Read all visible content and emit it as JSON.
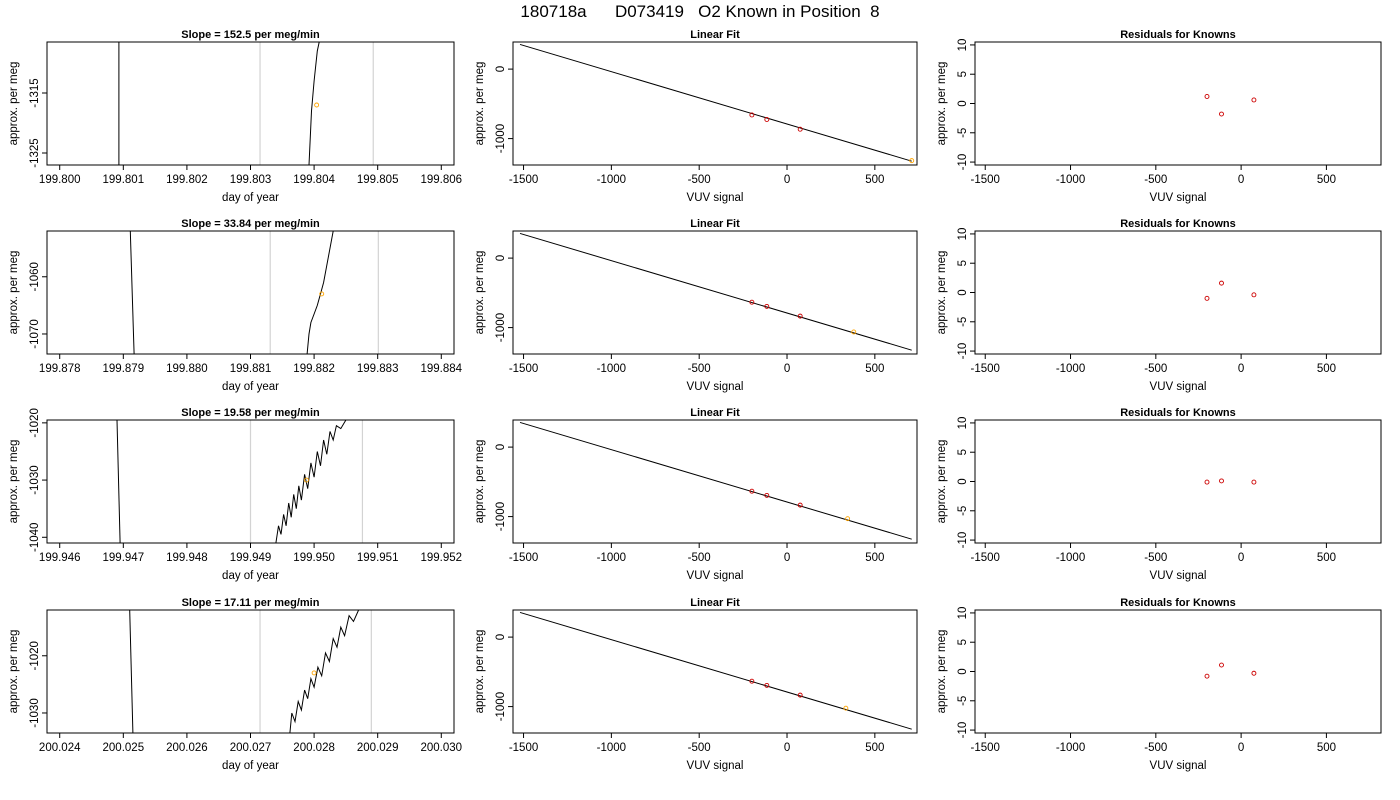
{
  "figure": {
    "title": "180718a      D073419   O2 Known in Position  8"
  },
  "colors": {
    "axis": "#000000",
    "trace": "#000000",
    "marker_line": "#d3d3d3",
    "known_point": "#cd0000",
    "sample_point": "#ffa500",
    "fit_line": "#000000"
  },
  "chart_data": [
    {
      "panel": "time-1",
      "type": "line",
      "title": "Slope =  152.5  per meg/min",
      "xlabel": "day of year",
      "ylabel": "approx. per meg",
      "xlim": [
        199.7998,
        199.8062
      ],
      "ylim": [
        -1327,
        -1306.5
      ],
      "xticks": [
        199.8,
        199.801,
        199.802,
        199.803,
        199.804,
        199.805,
        199.806
      ],
      "xtick_labels": [
        "199.800",
        "199.801",
        "199.802",
        "199.803",
        "199.804",
        "199.805",
        "199.806"
      ],
      "yticks": [
        -1325,
        -1315
      ],
      "ytick_labels": [
        "-1325",
        "-1315"
      ],
      "marker_lines": [
        199.80315,
        199.80493
      ],
      "trace_segments": [
        [
          [
            199.80093,
            -1306.5
          ],
          [
            199.80093,
            -1327
          ]
        ],
        [
          [
            199.80392,
            -1327
          ],
          [
            199.80396,
            -1318
          ],
          [
            199.804,
            -1313
          ],
          [
            199.80405,
            -1308
          ],
          [
            199.80408,
            -1306.5
          ]
        ]
      ],
      "sample_point": [
        199.80404,
        -1317
      ]
    },
    {
      "panel": "fit-1",
      "type": "scatter",
      "title": "Linear Fit",
      "xlabel": "VUV signal",
      "ylabel": "approx. per meg",
      "xlim": [
        -1560,
        740
      ],
      "ylim": [
        -1380,
        390
      ],
      "xticks": [
        -1500,
        -1000,
        -500,
        0,
        500
      ],
      "xtick_labels": [
        "-1500",
        "-1000",
        "-500",
        "0",
        "500"
      ],
      "yticks": [
        -1000,
        0
      ],
      "ytick_labels": [
        "-1000",
        "0"
      ],
      "fit_line": [
        [
          -1520,
          355
        ],
        [
          710,
          -1325
        ]
      ],
      "knowns": [
        [
          -200,
          -660
        ],
        [
          -115,
          -725
        ],
        [
          75,
          -865
        ]
      ],
      "sample": [
        [
          710,
          -1317
        ]
      ]
    },
    {
      "panel": "resid-1",
      "type": "scatter",
      "title": "Residuals for Knowns",
      "xlabel": "VUV signal",
      "ylabel": "approx. per meg",
      "xlim": [
        -1560,
        820
      ],
      "ylim": [
        -10.5,
        10.5
      ],
      "xticks": [
        -1500,
        -1000,
        -500,
        0,
        500
      ],
      "xtick_labels": [
        "-1500",
        "-1000",
        "-500",
        "0",
        "500"
      ],
      "yticks": [
        -10,
        -5,
        0,
        5,
        10
      ],
      "ytick_labels": [
        "-10",
        "-5",
        "0",
        "5",
        "10"
      ],
      "residuals": [
        [
          -200,
          1.2
        ],
        [
          -115,
          -1.8
        ],
        [
          75,
          0.6
        ]
      ]
    },
    {
      "panel": "time-2",
      "type": "line",
      "title": "Slope =  33.84  per meg/min",
      "xlabel": "day of year",
      "ylabel": "approx. per meg",
      "xlim": [
        199.8778,
        199.8842
      ],
      "ylim": [
        -1073.5,
        -1052
      ],
      "xticks": [
        199.878,
        199.879,
        199.88,
        199.881,
        199.882,
        199.883,
        199.884
      ],
      "xtick_labels": [
        "199.878",
        "199.879",
        "199.880",
        "199.881",
        "199.882",
        "199.883",
        "199.884"
      ],
      "yticks": [
        -1070,
        -1060
      ],
      "ytick_labels": [
        "-1070",
        "-1060"
      ],
      "marker_lines": [
        199.88131,
        199.88301
      ],
      "trace_segments": [
        [
          [
            199.87911,
            -1052
          ],
          [
            199.87917,
            -1073.5
          ]
        ],
        [
          [
            199.88189,
            -1073.5
          ],
          [
            199.88192,
            -1070
          ],
          [
            199.88195,
            -1068
          ],
          [
            199.882,
            -1066.5
          ],
          [
            199.88205,
            -1065
          ],
          [
            199.8821,
            -1063
          ],
          [
            199.88215,
            -1061
          ],
          [
            199.8822,
            -1058
          ],
          [
            199.88225,
            -1055
          ],
          [
            199.8823,
            -1052
          ]
        ]
      ],
      "sample_point": [
        199.88212,
        -1063
      ]
    },
    {
      "panel": "fit-2",
      "type": "scatter",
      "title": "Linear Fit",
      "xlabel": "VUV signal",
      "ylabel": "approx. per meg",
      "xlim": [
        -1560,
        740
      ],
      "ylim": [
        -1380,
        390
      ],
      "xticks": [
        -1500,
        -1000,
        -500,
        0,
        500
      ],
      "xtick_labels": [
        "-1500",
        "-1000",
        "-500",
        "0",
        "500"
      ],
      "yticks": [
        -1000,
        0
      ],
      "ytick_labels": [
        "-1000",
        "0"
      ],
      "fit_line": [
        [
          -1520,
          355
        ],
        [
          710,
          -1325
        ]
      ],
      "knowns": [
        [
          -200,
          -635
        ],
        [
          -115,
          -695
        ],
        [
          75,
          -835
        ]
      ],
      "sample": [
        [
          380,
          -1063
        ]
      ]
    },
    {
      "panel": "resid-2",
      "type": "scatter",
      "title": "Residuals for Knowns",
      "xlabel": "VUV signal",
      "ylabel": "approx. per meg",
      "xlim": [
        -1560,
        820
      ],
      "ylim": [
        -10.5,
        10.5
      ],
      "xticks": [
        -1500,
        -1000,
        -500,
        0,
        500
      ],
      "xtick_labels": [
        "-1500",
        "-1000",
        "-500",
        "0",
        "500"
      ],
      "yticks": [
        -10,
        -5,
        0,
        5,
        10
      ],
      "ytick_labels": [
        "-10",
        "-5",
        "0",
        "5",
        "10"
      ],
      "residuals": [
        [
          -200,
          -1.0
        ],
        [
          -115,
          1.6
        ],
        [
          75,
          -0.4
        ]
      ]
    },
    {
      "panel": "time-3",
      "type": "line",
      "title": "Slope =  19.58  per meg/min",
      "xlabel": "day of year",
      "ylabel": "approx. per meg",
      "xlim": [
        199.9458,
        199.9522
      ],
      "ylim": [
        -1041,
        -1019.5
      ],
      "xticks": [
        199.946,
        199.947,
        199.948,
        199.949,
        199.95,
        199.951,
        199.952
      ],
      "xtick_labels": [
        "199.946",
        "199.947",
        "199.948",
        "199.949",
        "199.950",
        "199.951",
        "199.952"
      ],
      "yticks": [
        -1040,
        -1030,
        -1020
      ],
      "ytick_labels": [
        "-1040",
        "-1030",
        "-1020"
      ],
      "marker_lines": [
        199.949,
        199.95076
      ],
      "trace_segments": [
        [
          [
            199.9469,
            -1019.5
          ],
          [
            199.94695,
            -1041
          ]
        ],
        [
          [
            199.9494,
            -1041
          ],
          [
            199.94944,
            -1038
          ],
          [
            199.94948,
            -1039.5
          ],
          [
            199.94952,
            -1036
          ],
          [
            199.94956,
            -1038
          ],
          [
            199.9496,
            -1034
          ],
          [
            199.94964,
            -1036.5
          ],
          [
            199.94968,
            -1032.5
          ],
          [
            199.94972,
            -1035
          ],
          [
            199.94976,
            -1031
          ],
          [
            199.9498,
            -1033.5
          ],
          [
            199.94985,
            -1029
          ],
          [
            199.9499,
            -1031.5
          ],
          [
            199.94995,
            -1027
          ],
          [
            199.95,
            -1029.5
          ],
          [
            199.95005,
            -1025
          ],
          [
            199.9501,
            -1027.5
          ],
          [
            199.95015,
            -1023
          ],
          [
            199.9502,
            -1025.5
          ],
          [
            199.95025,
            -1021.5
          ],
          [
            199.9503,
            -1023
          ],
          [
            199.95035,
            -1020.5
          ],
          [
            199.95042,
            -1021
          ],
          [
            199.9505,
            -1019.5
          ]
        ]
      ],
      "sample_point": [
        199.94988,
        -1030
      ]
    },
    {
      "panel": "fit-3",
      "type": "scatter",
      "title": "Linear Fit",
      "xlabel": "VUV signal",
      "ylabel": "approx. per meg",
      "xlim": [
        -1560,
        740
      ],
      "ylim": [
        -1380,
        390
      ],
      "xticks": [
        -1500,
        -1000,
        -500,
        0,
        500
      ],
      "xtick_labels": [
        "-1500",
        "-1000",
        "-500",
        "0",
        "500"
      ],
      "yticks": [
        -1000,
        0
      ],
      "ytick_labels": [
        "-1000",
        "0"
      ],
      "fit_line": [
        [
          -1520,
          355
        ],
        [
          710,
          -1325
        ]
      ],
      "knowns": [
        [
          -200,
          -635
        ],
        [
          -115,
          -695
        ],
        [
          75,
          -835
        ]
      ],
      "sample": [
        [
          345,
          -1030
        ]
      ]
    },
    {
      "panel": "resid-3",
      "type": "scatter",
      "title": "Residuals for Knowns",
      "xlabel": "VUV signal",
      "ylabel": "approx. per meg",
      "xlim": [
        -1560,
        820
      ],
      "ylim": [
        -10.5,
        10.5
      ],
      "xticks": [
        -1500,
        -1000,
        -500,
        0,
        500
      ],
      "xtick_labels": [
        "-1500",
        "-1000",
        "-500",
        "0",
        "500"
      ],
      "yticks": [
        -10,
        -5,
        0,
        5,
        10
      ],
      "ytick_labels": [
        "-10",
        "-5",
        "0",
        "5",
        "10"
      ],
      "residuals": [
        [
          -200,
          -0.1
        ],
        [
          -115,
          0.1
        ],
        [
          75,
          -0.1
        ]
      ]
    },
    {
      "panel": "time-4",
      "type": "line",
      "title": "Slope =  17.11  per meg/min",
      "xlabel": "day of year",
      "ylabel": "approx. per meg",
      "xlim": [
        200.0238,
        200.0302
      ],
      "ylim": [
        -1033.5,
        -1012
      ],
      "xticks": [
        200.024,
        200.025,
        200.026,
        200.027,
        200.028,
        200.029,
        200.03
      ],
      "xtick_labels": [
        "200.024",
        "200.025",
        "200.026",
        "200.027",
        "200.028",
        "200.029",
        "200.030"
      ],
      "yticks": [
        -1030,
        -1020
      ],
      "ytick_labels": [
        "-1030",
        "-1020"
      ],
      "marker_lines": [
        200.02715,
        200.0289
      ],
      "trace_segments": [
        [
          [
            200.0251,
            -1012
          ],
          [
            200.02515,
            -1033.5
          ]
        ],
        [
          [
            200.02762,
            -1033.5
          ],
          [
            200.02765,
            -1030
          ],
          [
            200.0277,
            -1031.5
          ],
          [
            200.02775,
            -1028
          ],
          [
            200.0278,
            -1029.5
          ],
          [
            200.02785,
            -1026
          ],
          [
            200.0279,
            -1027.5
          ],
          [
            200.02795,
            -1024
          ],
          [
            200.028,
            -1025.5
          ],
          [
            200.02806,
            -1022
          ],
          [
            200.02812,
            -1023.5
          ],
          [
            200.02818,
            -1019.5
          ],
          [
            200.02824,
            -1021
          ],
          [
            200.0283,
            -1017
          ],
          [
            200.02836,
            -1018.5
          ],
          [
            200.02842,
            -1015
          ],
          [
            200.02848,
            -1016.5
          ],
          [
            200.02855,
            -1013
          ],
          [
            200.02862,
            -1014
          ],
          [
            200.0287,
            -1012
          ]
        ]
      ],
      "sample_point": [
        200.028,
        -1023
      ]
    },
    {
      "panel": "fit-4",
      "type": "scatter",
      "title": "Linear Fit",
      "xlabel": "VUV signal",
      "ylabel": "approx. per meg",
      "xlim": [
        -1560,
        740
      ],
      "ylim": [
        -1380,
        390
      ],
      "xticks": [
        -1500,
        -1000,
        -500,
        0,
        500
      ],
      "xtick_labels": [
        "-1500",
        "-1000",
        "-500",
        "0",
        "500"
      ],
      "yticks": [
        -1000,
        0
      ],
      "ytick_labels": [
        "-1000",
        "0"
      ],
      "fit_line": [
        [
          -1520,
          355
        ],
        [
          710,
          -1325
        ]
      ],
      "knowns": [
        [
          -200,
          -635
        ],
        [
          -115,
          -695
        ],
        [
          75,
          -835
        ]
      ],
      "sample": [
        [
          335,
          -1023
        ]
      ]
    },
    {
      "panel": "resid-4",
      "type": "scatter",
      "title": "Residuals for Knowns",
      "xlabel": "VUV signal",
      "ylabel": "approx. per meg",
      "xlim": [
        -1560,
        820
      ],
      "ylim": [
        -10.5,
        10.5
      ],
      "xticks": [
        -1500,
        -1000,
        -500,
        0,
        500
      ],
      "xtick_labels": [
        "-1500",
        "-1000",
        "-500",
        "0",
        "500"
      ],
      "yticks": [
        -10,
        -5,
        0,
        5,
        10
      ],
      "ytick_labels": [
        "-10",
        "-5",
        "0",
        "5",
        "10"
      ],
      "residuals": [
        [
          -200,
          -0.8
        ],
        [
          -115,
          1.1
        ],
        [
          75,
          -0.3
        ]
      ]
    }
  ]
}
